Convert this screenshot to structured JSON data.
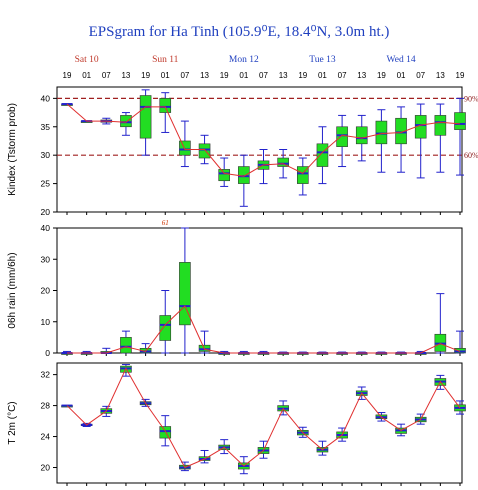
{
  "title": "EPSgram for Ha Tinh (105.9⁰E, 18.4⁰N, 3.0m ht.)",
  "day_labels": [
    {
      "text": "Sat 10",
      "color": "#c0392b",
      "step": 1
    },
    {
      "text": "Sun 11",
      "color": "#c0392b",
      "step": 5
    },
    {
      "text": "Mon 12",
      "color": "#1f3fbf",
      "step": 9
    },
    {
      "text": "Tue 13",
      "color": "#1f3fbf",
      "step": 13
    },
    {
      "text": "Wed 14",
      "color": "#1f3fbf",
      "step": 17
    }
  ],
  "hours": [
    "19",
    "01",
    "07",
    "13",
    "19",
    "01",
    "07",
    "13",
    "19",
    "01",
    "07",
    "13",
    "19",
    "01",
    "07",
    "13",
    "19",
    "01",
    "07",
    "13",
    "19"
  ],
  "colors": {
    "box_fill": "#22dd22",
    "median": "#2222cc",
    "line": "#e03030",
    "whisker": "#2222cc",
    "ref_line": "#a02020"
  },
  "chart_data": [
    {
      "type": "box",
      "ylabel": "Kindex (Tstorm prob)",
      "ylim": [
        20,
        42
      ],
      "yticks": [
        20,
        25,
        30,
        35,
        40
      ],
      "ref_lines": [
        {
          "value": 40,
          "label": "90%"
        },
        {
          "value": 30,
          "label": "60%"
        }
      ],
      "series": [
        {
          "min": 39,
          "q1": 39,
          "median": 39,
          "q3": 39,
          "max": 39
        },
        {
          "min": 36,
          "q1": 36,
          "median": 36,
          "q3": 36,
          "max": 36
        },
        {
          "min": 35.5,
          "q1": 35.8,
          "median": 36,
          "q3": 36.2,
          "max": 36.5
        },
        {
          "min": 33.5,
          "q1": 35,
          "median": 35.8,
          "q3": 37,
          "max": 37.5
        },
        {
          "min": 30,
          "q1": 33,
          "median": 38.5,
          "q3": 40.5,
          "max": 41.5
        },
        {
          "min": 34,
          "q1": 37.5,
          "median": 38.5,
          "q3": 40,
          "max": 41
        },
        {
          "min": 28,
          "q1": 30,
          "median": 31,
          "q3": 32.5,
          "max": 36
        },
        {
          "min": 28.5,
          "q1": 29.5,
          "median": 31,
          "q3": 32,
          "max": 33.5
        },
        {
          "min": 24.5,
          "q1": 25.5,
          "median": 26.8,
          "q3": 27.5,
          "max": 29.5
        },
        {
          "min": 21,
          "q1": 25,
          "median": 26.3,
          "q3": 28,
          "max": 30
        },
        {
          "min": 25,
          "q1": 27.5,
          "median": 28.3,
          "q3": 29,
          "max": 31
        },
        {
          "min": 26,
          "q1": 28,
          "median": 28.5,
          "q3": 29.5,
          "max": 31
        },
        {
          "min": 23,
          "q1": 25,
          "median": 26.8,
          "q3": 28,
          "max": 29.5
        },
        {
          "min": 25,
          "q1": 28,
          "median": 30.5,
          "q3": 32,
          "max": 35
        },
        {
          "min": 28,
          "q1": 31.5,
          "median": 33.5,
          "q3": 35,
          "max": 37
        },
        {
          "min": 29,
          "q1": 32,
          "median": 33,
          "q3": 35,
          "max": 37
        },
        {
          "min": 27,
          "q1": 32,
          "median": 33.8,
          "q3": 36,
          "max": 38
        },
        {
          "min": 27,
          "q1": 32,
          "median": 34,
          "q3": 36.5,
          "max": 38.5
        },
        {
          "min": 26,
          "q1": 33,
          "median": 35.3,
          "q3": 37,
          "max": 39
        },
        {
          "min": 27,
          "q1": 33.5,
          "median": 35.8,
          "q3": 37,
          "max": 39
        },
        {
          "min": 26.5,
          "q1": 34.5,
          "median": 35.5,
          "q3": 37.5,
          "max": 40
        }
      ]
    },
    {
      "type": "box",
      "ylabel": "06h rain (mm/6h)",
      "ylim": [
        0,
        40
      ],
      "yticks": [
        0,
        10,
        20,
        30,
        40
      ],
      "annotation": {
        "text": "61",
        "step": 5
      },
      "series": [
        {
          "min": 0,
          "q1": 0,
          "median": 0,
          "q3": 0,
          "max": 0.5
        },
        {
          "min": 0,
          "q1": 0,
          "median": 0,
          "q3": 0,
          "max": 0.5
        },
        {
          "min": 0,
          "q1": 0,
          "median": 0,
          "q3": 0.5,
          "max": 1.5
        },
        {
          "min": 0,
          "q1": 0,
          "median": 2,
          "q3": 5,
          "max": 7
        },
        {
          "min": 0,
          "q1": 0,
          "median": 0.5,
          "q3": 1.5,
          "max": 3
        },
        {
          "min": 0,
          "q1": 4,
          "median": 9,
          "q3": 12,
          "max": 20
        },
        {
          "min": 0,
          "q1": 9,
          "median": 15,
          "q3": 29,
          "max": 40
        },
        {
          "min": 0,
          "q1": 0.5,
          "median": 1.2,
          "q3": 2.5,
          "max": 7
        },
        {
          "min": 0,
          "q1": 0,
          "median": 0,
          "q3": 0,
          "max": 0.5
        },
        {
          "min": 0,
          "q1": 0,
          "median": 0,
          "q3": 0,
          "max": 0.5
        },
        {
          "min": 0,
          "q1": 0,
          "median": 0,
          "q3": 0,
          "max": 0.5
        },
        {
          "min": 0,
          "q1": 0,
          "median": 0,
          "q3": 0,
          "max": 0.3
        },
        {
          "min": 0,
          "q1": 0,
          "median": 0,
          "q3": 0,
          "max": 0.3
        },
        {
          "min": 0,
          "q1": 0,
          "median": 0,
          "q3": 0,
          "max": 0.3
        },
        {
          "min": 0,
          "q1": 0,
          "median": 0,
          "q3": 0,
          "max": 0.3
        },
        {
          "min": 0,
          "q1": 0,
          "median": 0,
          "q3": 0,
          "max": 0.3
        },
        {
          "min": 0,
          "q1": 0,
          "median": 0,
          "q3": 0,
          "max": 0.3
        },
        {
          "min": 0,
          "q1": 0,
          "median": 0,
          "q3": 0,
          "max": 0.3
        },
        {
          "min": 0,
          "q1": 0,
          "median": 0,
          "q3": 0,
          "max": 0.5
        },
        {
          "min": 0,
          "q1": 0.5,
          "median": 3,
          "q3": 6,
          "max": 19
        },
        {
          "min": 0,
          "q1": 0,
          "median": 0.5,
          "q3": 1.5,
          "max": 7
        }
      ]
    },
    {
      "type": "box",
      "ylabel": "T 2m (°C)",
      "ylim": [
        18,
        33.5
      ],
      "yticks": [
        20,
        24,
        28,
        32
      ],
      "series": [
        {
          "min": 28,
          "q1": 28,
          "median": 28,
          "q3": 28,
          "max": 28
        },
        {
          "min": 25.3,
          "q1": 25.4,
          "median": 25.5,
          "q3": 25.6,
          "max": 25.7
        },
        {
          "min": 26.6,
          "q1": 27,
          "median": 27.3,
          "q3": 27.6,
          "max": 27.9
        },
        {
          "min": 31.8,
          "q1": 32.3,
          "median": 32.8,
          "q3": 33.1,
          "max": 33.3
        },
        {
          "min": 27.9,
          "q1": 28.1,
          "median": 28.3,
          "q3": 28.5,
          "max": 28.8
        },
        {
          "min": 22.8,
          "q1": 23.8,
          "median": 24.7,
          "q3": 25.3,
          "max": 26.7
        },
        {
          "min": 19.6,
          "q1": 19.8,
          "median": 20,
          "q3": 20.3,
          "max": 20.7
        },
        {
          "min": 20.6,
          "q1": 20.9,
          "median": 21.1,
          "q3": 21.4,
          "max": 22.2
        },
        {
          "min": 21.8,
          "q1": 22.3,
          "median": 22.6,
          "q3": 22.9,
          "max": 23.6
        },
        {
          "min": 19.2,
          "q1": 19.8,
          "median": 20.2,
          "q3": 20.6,
          "max": 21.4
        },
        {
          "min": 21.2,
          "q1": 21.8,
          "median": 22.2,
          "q3": 22.6,
          "max": 23.4
        },
        {
          "min": 26.8,
          "q1": 27.3,
          "median": 27.6,
          "q3": 28,
          "max": 28.6
        },
        {
          "min": 23.9,
          "q1": 24.2,
          "median": 24.5,
          "q3": 24.8,
          "max": 25.2
        },
        {
          "min": 21.6,
          "q1": 22,
          "median": 22.3,
          "q3": 22.6,
          "max": 23.4
        },
        {
          "min": 23.4,
          "q1": 23.8,
          "median": 24.2,
          "q3": 24.6,
          "max": 25.1
        },
        {
          "min": 28.8,
          "q1": 29.3,
          "median": 29.6,
          "q3": 29.9,
          "max": 30.4
        },
        {
          "min": 26,
          "q1": 26.3,
          "median": 26.5,
          "q3": 26.8,
          "max": 27.1
        },
        {
          "min": 24.1,
          "q1": 24.4,
          "median": 24.8,
          "q3": 25.1,
          "max": 25.6
        },
        {
          "min": 25.6,
          "q1": 25.9,
          "median": 26.2,
          "q3": 26.5,
          "max": 26.9
        },
        {
          "min": 30.1,
          "q1": 30.6,
          "median": 31.1,
          "q3": 31.5,
          "max": 31.9
        },
        {
          "min": 26.9,
          "q1": 27.3,
          "median": 27.7,
          "q3": 28.1,
          "max": 28.6
        }
      ]
    }
  ]
}
